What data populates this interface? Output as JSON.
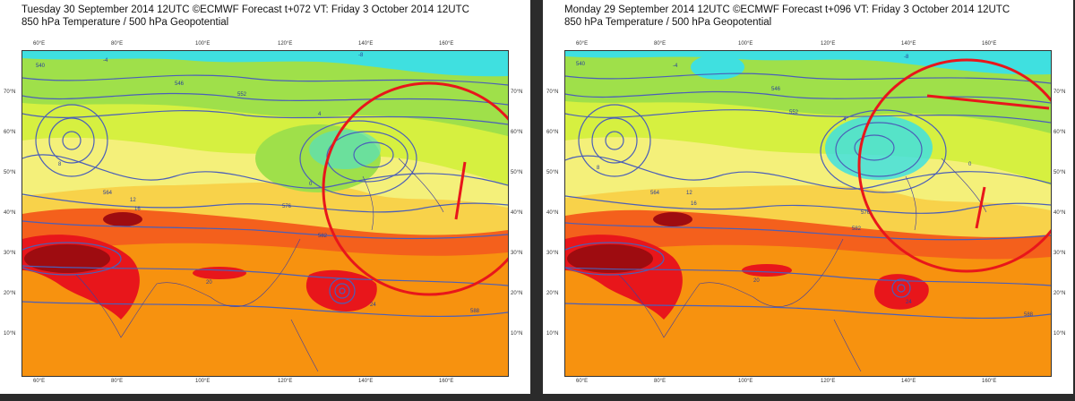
{
  "panels": [
    {
      "title_line1": "Tuesday 30 September 2014 12UTC ©ECMWF Forecast t+072 VT: Friday 3 October 2014 12UTC",
      "title_line2": "850 hPa Temperature / 500 hPa Geopotential"
    },
    {
      "title_line1": "Monday 29 September 2014 12UTC ©ECMWF Forecast t+096 VT: Friday 3 October 2014 12UTC",
      "title_line2": "850 hPa Temperature / 500 hPa Geopotential"
    }
  ],
  "lon_ticks": [
    "60°E",
    "80°E",
    "100°E",
    "120°E",
    "140°E",
    "160°E"
  ],
  "lat_ticks": [
    "70°N",
    "60°N",
    "50°N",
    "40°N",
    "30°N",
    "20°N",
    "10°N"
  ],
  "contour_labels": {
    "left": [
      "540",
      "546",
      "552",
      "564",
      "576",
      "582",
      "588",
      "-4",
      "-8",
      "0",
      "4",
      "8",
      "12",
      "16",
      "20",
      "24"
    ],
    "right": [
      "540",
      "546",
      "552",
      "564",
      "576",
      "582",
      "588",
      "-4",
      "-8",
      "0",
      "4",
      "8",
      "12",
      "16",
      "20",
      "24"
    ]
  },
  "highlight_color": "#e8161b",
  "colors": {
    "cyan": "#3fe0e0",
    "green": "#9fe04a",
    "yellowgreen": "#d6f040",
    "paleyellow": "#f4f07a",
    "yellow": "#f8d24a",
    "orange": "#f7920f",
    "deeporange": "#f4601c",
    "red": "#e8161b",
    "darkred": "#9e0c10",
    "contour": "#4b5fb8"
  }
}
